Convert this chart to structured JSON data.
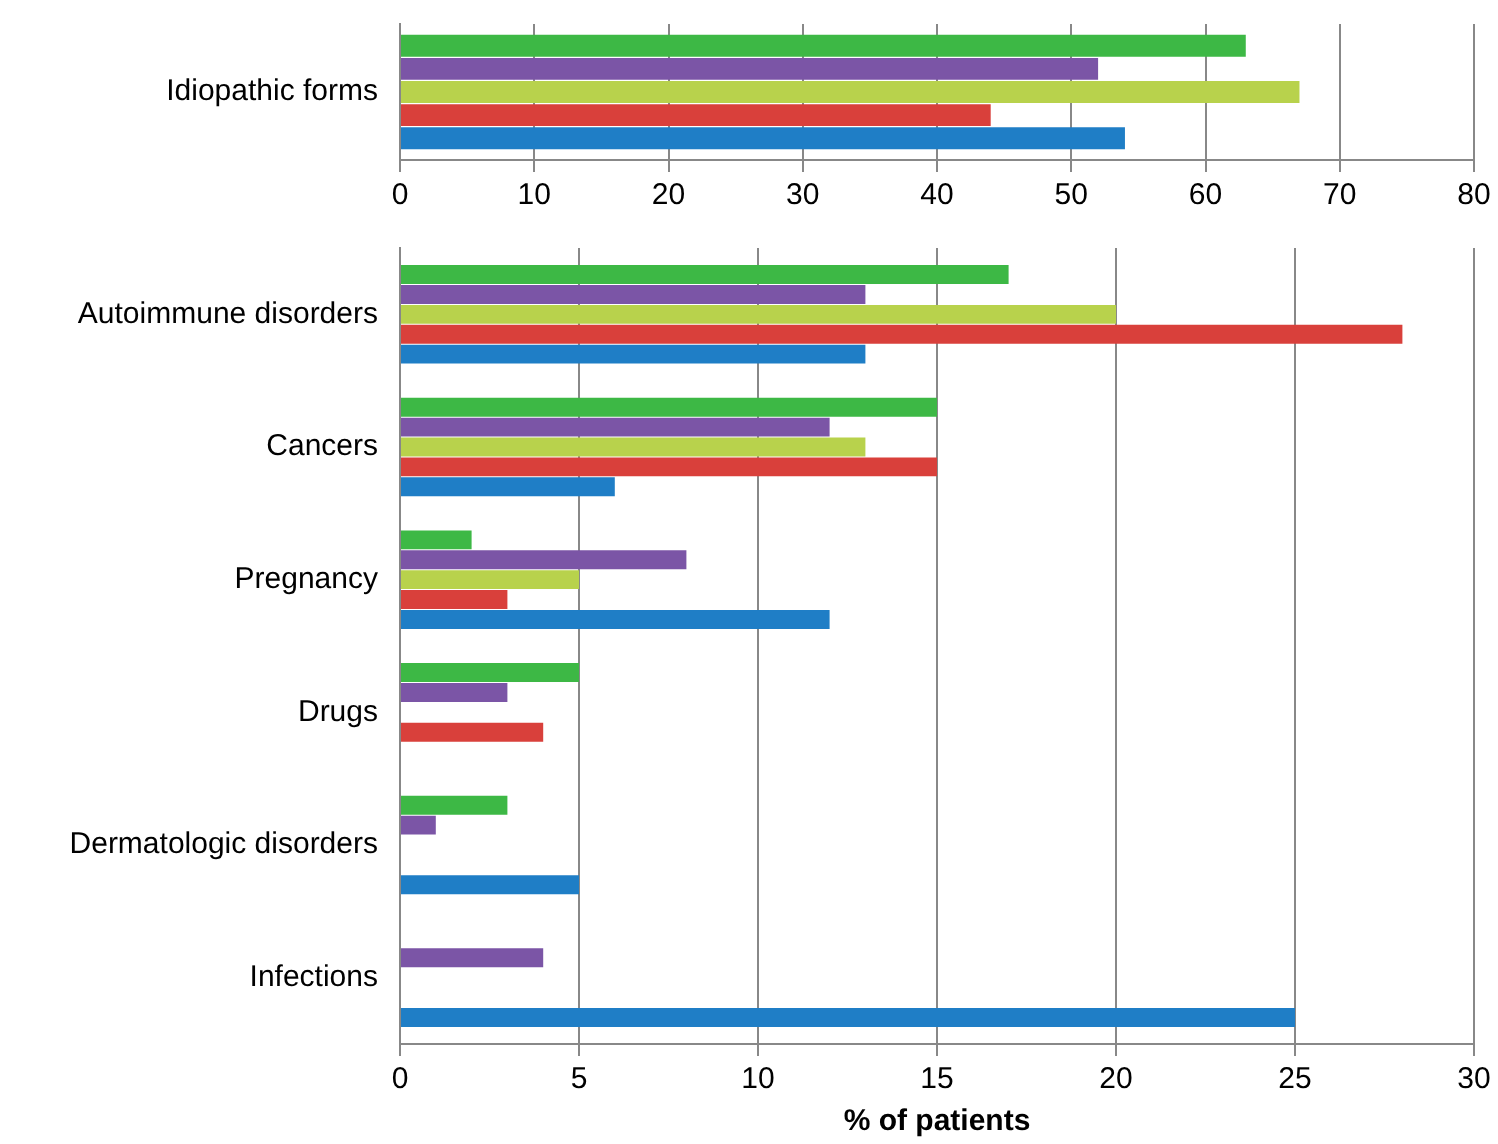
{
  "chart_data": [
    {
      "type": "bar",
      "orientation": "horizontal",
      "categories": [
        "Idiopathic forms"
      ],
      "series": [
        {
          "color": "#3db845",
          "values": [
            63
          ]
        },
        {
          "color": "#7b55a6",
          "values": [
            52
          ]
        },
        {
          "color": "#b8d24c",
          "values": [
            67
          ]
        },
        {
          "color": "#d9403b",
          "values": [
            44
          ]
        },
        {
          "color": "#1f7ec6",
          "values": [
            54
          ]
        }
      ],
      "xlim": [
        0,
        80
      ],
      "xticks": [
        0,
        10,
        20,
        30,
        40,
        50,
        60,
        70,
        80
      ],
      "grid": "x",
      "legend": false
    },
    {
      "type": "bar",
      "orientation": "horizontal",
      "xlabel": "% of patients",
      "categories": [
        "Autoimmune disorders",
        "Cancers",
        "Pregnancy",
        "Drugs",
        "Dermatologic disorders",
        "Infections"
      ],
      "series": [
        {
          "color": "#3db845",
          "values": [
            17,
            15,
            2,
            5,
            3,
            null
          ]
        },
        {
          "color": "#7b55a6",
          "values": [
            13,
            12,
            8,
            3,
            1,
            4
          ]
        },
        {
          "color": "#b8d24c",
          "values": [
            20,
            13,
            5,
            null,
            null,
            null
          ]
        },
        {
          "color": "#d9403b",
          "values": [
            28,
            15,
            3,
            4,
            null,
            null
          ]
        },
        {
          "color": "#1f7ec6",
          "values": [
            13,
            6,
            12,
            null,
            5,
            25
          ]
        }
      ],
      "xlim": [
        0,
        30
      ],
      "xticks": [
        0,
        5,
        10,
        15,
        20,
        25,
        30
      ],
      "grid": "x",
      "legend": false
    }
  ]
}
